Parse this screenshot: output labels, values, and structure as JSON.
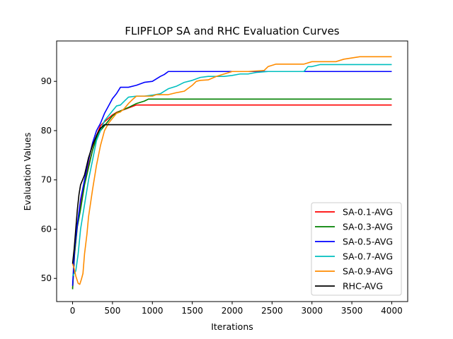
{
  "chart_data": {
    "type": "line",
    "title": "FLIPFLOP SA and RHC Evaluation Curves",
    "xlabel": "Iterations",
    "ylabel": "Evaluation Values",
    "xlim": [
      -200,
      4200
    ],
    "ylim": [
      45.3,
      98.2
    ],
    "xticks": [
      0,
      500,
      1000,
      1500,
      2000,
      2500,
      3000,
      3500,
      4000
    ],
    "yticks": [
      50,
      60,
      70,
      80,
      90
    ],
    "grid": false,
    "legend_position": "lower-right",
    "series": [
      {
        "name": "SA-0.1-AVG",
        "color": "#ff0000",
        "points": [
          [
            0,
            48
          ],
          [
            25,
            55
          ],
          [
            60,
            61
          ],
          [
            100,
            65
          ],
          [
            150,
            70
          ],
          [
            200,
            73
          ],
          [
            250,
            76
          ],
          [
            300,
            79
          ],
          [
            350,
            81
          ],
          [
            400,
            81.8
          ],
          [
            450,
            82.5
          ],
          [
            500,
            83.2
          ],
          [
            550,
            83.7
          ],
          [
            600,
            84
          ],
          [
            650,
            84.3
          ],
          [
            700,
            84.6
          ],
          [
            750,
            84.9
          ],
          [
            800,
            85.2
          ],
          [
            1000,
            85.2
          ],
          [
            2000,
            85.2
          ],
          [
            3000,
            85.2
          ],
          [
            4000,
            85.2
          ]
        ]
      },
      {
        "name": "SA-0.3-AVG",
        "color": "#008000",
        "points": [
          [
            0,
            47.8
          ],
          [
            25,
            55
          ],
          [
            60,
            60.5
          ],
          [
            100,
            64
          ],
          [
            150,
            69
          ],
          [
            200,
            72.5
          ],
          [
            250,
            76
          ],
          [
            300,
            78.5
          ],
          [
            350,
            80
          ],
          [
            400,
            81
          ],
          [
            450,
            82
          ],
          [
            500,
            83
          ],
          [
            550,
            83.6
          ],
          [
            600,
            84
          ],
          [
            700,
            84.7
          ],
          [
            800,
            85.5
          ],
          [
            900,
            86
          ],
          [
            950,
            86.4
          ],
          [
            1000,
            86.4
          ],
          [
            2000,
            86.4
          ],
          [
            3000,
            86.4
          ],
          [
            4000,
            86.4
          ]
        ]
      },
      {
        "name": "SA-0.5-AVG",
        "color": "#0000ff",
        "points": [
          [
            0,
            48.5
          ],
          [
            25,
            56
          ],
          [
            60,
            61
          ],
          [
            100,
            66
          ],
          [
            150,
            70
          ],
          [
            200,
            74
          ],
          [
            250,
            77.5
          ],
          [
            300,
            80
          ],
          [
            350,
            81.5
          ],
          [
            400,
            83.5
          ],
          [
            450,
            85
          ],
          [
            500,
            86.5
          ],
          [
            550,
            87.5
          ],
          [
            600,
            88.8
          ],
          [
            700,
            88.8
          ],
          [
            800,
            89.2
          ],
          [
            900,
            89.8
          ],
          [
            1000,
            90
          ],
          [
            1050,
            90.5
          ],
          [
            1100,
            91
          ],
          [
            1150,
            91.4
          ],
          [
            1200,
            92
          ],
          [
            2000,
            92
          ],
          [
            3000,
            92
          ],
          [
            4000,
            92
          ]
        ]
      },
      {
        "name": "SA-0.7-AVG",
        "color": "#00bfbf",
        "points": [
          [
            0,
            50.5
          ],
          [
            40,
            51.5
          ],
          [
            70,
            55
          ],
          [
            100,
            60
          ],
          [
            150,
            65
          ],
          [
            200,
            70
          ],
          [
            250,
            74
          ],
          [
            300,
            78
          ],
          [
            350,
            80
          ],
          [
            400,
            82
          ],
          [
            450,
            83
          ],
          [
            500,
            84
          ],
          [
            550,
            85
          ],
          [
            600,
            85.2
          ],
          [
            650,
            86
          ],
          [
            700,
            86.8
          ],
          [
            800,
            87
          ],
          [
            900,
            87
          ],
          [
            1000,
            87.2
          ],
          [
            1100,
            87.5
          ],
          [
            1200,
            88.5
          ],
          [
            1300,
            89
          ],
          [
            1400,
            89.8
          ],
          [
            1500,
            90.2
          ],
          [
            1600,
            90.8
          ],
          [
            1700,
            91
          ],
          [
            1800,
            91
          ],
          [
            1900,
            91
          ],
          [
            2000,
            91.2
          ],
          [
            2100,
            91.5
          ],
          [
            2200,
            91.5
          ],
          [
            2300,
            91.8
          ],
          [
            2450,
            92
          ],
          [
            2900,
            92
          ],
          [
            2950,
            93
          ],
          [
            3000,
            93
          ],
          [
            3100,
            93.4
          ],
          [
            3500,
            93.4
          ],
          [
            4000,
            93.4
          ]
        ]
      },
      {
        "name": "SA-0.9-AVG",
        "color": "#ff8c00",
        "points": [
          [
            0,
            53
          ],
          [
            20,
            52
          ],
          [
            40,
            50.5
          ],
          [
            70,
            49
          ],
          [
            90,
            48.8
          ],
          [
            110,
            49.8
          ],
          [
            130,
            51
          ],
          [
            150,
            55
          ],
          [
            180,
            59
          ],
          [
            200,
            62.5
          ],
          [
            250,
            68
          ],
          [
            300,
            73
          ],
          [
            350,
            77
          ],
          [
            400,
            80
          ],
          [
            450,
            81.5
          ],
          [
            500,
            82.5
          ],
          [
            550,
            83.5
          ],
          [
            600,
            83.8
          ],
          [
            650,
            84.5
          ],
          [
            700,
            85.5
          ],
          [
            750,
            86.3
          ],
          [
            800,
            87
          ],
          [
            900,
            87
          ],
          [
            1000,
            87
          ],
          [
            1050,
            87.3
          ],
          [
            1200,
            87.3
          ],
          [
            1300,
            87.7
          ],
          [
            1400,
            88
          ],
          [
            1500,
            89.2
          ],
          [
            1550,
            90
          ],
          [
            1600,
            90.2
          ],
          [
            1700,
            90.3
          ],
          [
            1800,
            91
          ],
          [
            1900,
            91.5
          ],
          [
            2000,
            92
          ],
          [
            2200,
            92
          ],
          [
            2400,
            92.2
          ],
          [
            2450,
            93
          ],
          [
            2550,
            93.5
          ],
          [
            2900,
            93.5
          ],
          [
            3000,
            94
          ],
          [
            3300,
            94
          ],
          [
            3400,
            94.5
          ],
          [
            3600,
            95
          ],
          [
            4000,
            95
          ]
        ]
      },
      {
        "name": "RHC-AVG",
        "color": "#000000",
        "points": [
          [
            0,
            53
          ],
          [
            20,
            56
          ],
          [
            40,
            60
          ],
          [
            60,
            64
          ],
          [
            80,
            67
          ],
          [
            100,
            69
          ],
          [
            150,
            71
          ],
          [
            200,
            74.5
          ],
          [
            250,
            77
          ],
          [
            300,
            79
          ],
          [
            350,
            80.5
          ],
          [
            400,
            81.2
          ],
          [
            500,
            81.2
          ],
          [
            1000,
            81.2
          ],
          [
            2000,
            81.2
          ],
          [
            3000,
            81.2
          ],
          [
            4000,
            81.2
          ]
        ]
      }
    ]
  }
}
